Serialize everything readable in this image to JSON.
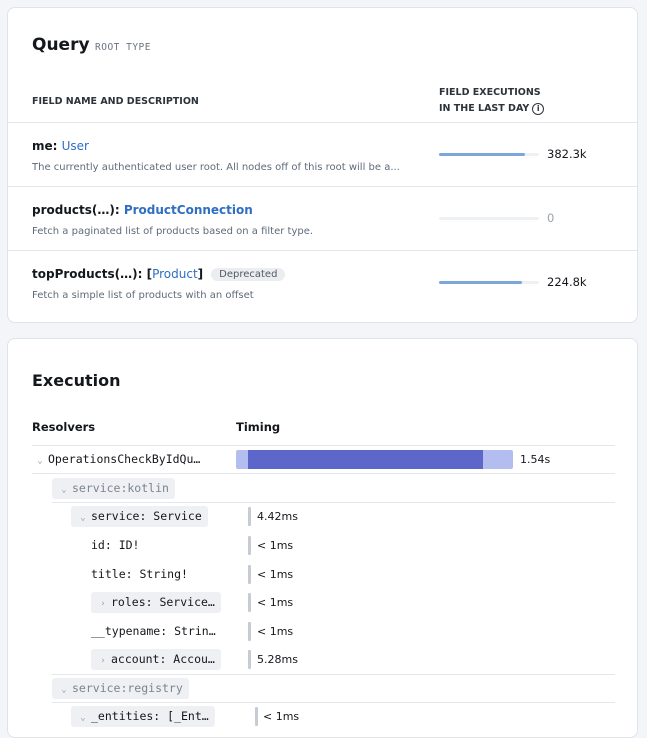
{
  "schema": {
    "title": "Query",
    "subtitle": "ROOT TYPE",
    "col_field": "FIELD NAME AND DESCRIPTION",
    "col_exec_line1": "FIELD EXECUTIONS",
    "col_exec_line2": "IN THE LAST DAY",
    "info_glyph": "i",
    "fields": [
      {
        "name": "me",
        "sep": ": ",
        "type": "User",
        "desc": "The currently authenticated user root. All nodes off of this root will be a...",
        "executions": "382.3k",
        "bar_fraction": 0.86
      },
      {
        "name": "products(…)",
        "sep": ": ",
        "type": "ProductConnection",
        "desc": "Fetch a paginated list of products based on a filter type.",
        "executions": "0",
        "bar_fraction": 0
      },
      {
        "name": "topProducts(…)",
        "sep": ": [",
        "type": "Product",
        "close": "]",
        "badge": "Deprecated",
        "desc": "Fetch a simple list of products with an offset",
        "executions": "224.8k",
        "bar_fraction": 0.83
      }
    ],
    "colors": {
      "link": "#2f6ec2",
      "bar": "#7ba7db"
    }
  },
  "execution": {
    "title": "Execution",
    "col_resolvers": "Resolvers",
    "col_timing": "Timing",
    "nodes": [
      {
        "label": "OperationsCheckByIdQu…",
        "chev": "⌄",
        "timing": "1.54s"
      },
      {
        "label": "service:kotlin",
        "chev": "⌄"
      },
      {
        "label": "service: Service",
        "chev": "⌄",
        "timing": "4.42ms"
      },
      {
        "label": "id: ID!",
        "timing": "< 1ms"
      },
      {
        "label": "title: String!",
        "timing": "< 1ms"
      },
      {
        "label": "roles: Service…",
        "chev": "›",
        "timing": "< 1ms"
      },
      {
        "label": "__typename: Strin…",
        "timing": "< 1ms"
      },
      {
        "label": "account: Accou…",
        "chev": "›",
        "timing": "5.28ms"
      },
      {
        "label": "service:registry",
        "chev": "⌄"
      },
      {
        "label": "_entities: [_Ent…",
        "chev": "⌄",
        "timing": "< 1ms"
      }
    ],
    "colors": {
      "bar_dark": "#5c67c9",
      "bar_light": "#b4bdf0"
    }
  }
}
